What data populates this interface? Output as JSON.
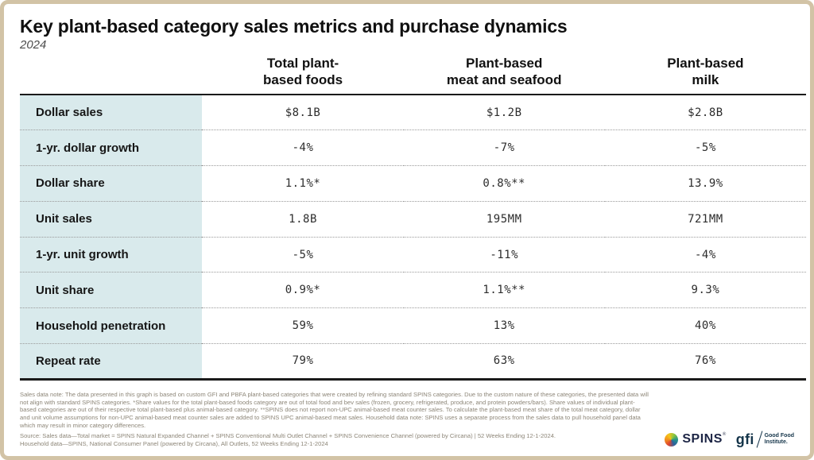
{
  "chart_data": {
    "type": "table",
    "title": "Key plant-based category sales metrics and purchase dynamics",
    "subtitle": "2024",
    "columns": [
      {
        "line1": "Total plant-",
        "line2": "based foods"
      },
      {
        "line1": "Plant-based",
        "line2": "meat and seafood"
      },
      {
        "line1": "Plant-based",
        "line2": "milk"
      }
    ],
    "rows": [
      {
        "label": "Dollar sales",
        "values": [
          "$8.1B",
          "$1.2B",
          "$2.8B"
        ]
      },
      {
        "label": "1-yr. dollar growth",
        "values": [
          "-4%",
          "-7%",
          "-5%"
        ]
      },
      {
        "label": "Dollar share",
        "values": [
          "1.1%*",
          "0.8%**",
          "13.9%"
        ]
      },
      {
        "label": "Unit sales",
        "values": [
          "1.8B",
          "195MM",
          "721MM"
        ]
      },
      {
        "label": "1-yr. unit growth",
        "values": [
          "-5%",
          "-11%",
          "-4%"
        ]
      },
      {
        "label": "Unit share",
        "values": [
          "0.9%*",
          "1.1%**",
          "9.3%"
        ]
      },
      {
        "label": "Household penetration",
        "values": [
          "59%",
          "13%",
          "40%"
        ]
      },
      {
        "label": "Repeat rate",
        "values": [
          "79%",
          "63%",
          "76%"
        ]
      }
    ]
  },
  "footnotes": {
    "sales_note": "Sales data note: The data presented in this graph is based on custom GFI and PBFA plant-based categories that were created by refining standard SPINS categories. Due to the custom nature of these categories, the presented data will not align with standard SPINS categories. *Share values for the total plant-based foods category are out of total food and bev sales (frozen, grocery, refrigerated, produce, and protein powders/bars). Share values of individual plant-based categories are out of their respective total plant-based plus animal-based category. **SPINS does not report non-UPC animal-based meat counter sales. To calculate the plant-based meat share of the total meat category, dollar and unit volume assumptions for non-UPC animal-based meat counter sales are added to SPINS UPC animal-based meat sales. Household data note: SPINS uses a separate process from the sales data to pull household panel data which may result in minor category differences.",
    "source_line1": "Source: Sales data—Total market = SPINS Natural Expanded Channel + SPINS Conventional Multi Outlet Channel + SPINS Convenience Channel (powered by Circana) | 52 Weeks Ending 12-1-2024.",
    "source_line2": "Household data—SPINS, National Consumer Panel (powered by Circana), All Outlets, 52 Weeks Ending 12-1-2024"
  },
  "logos": {
    "spins_label": "SPINS",
    "spins_mark": "®",
    "gfi_label": "gfi",
    "gfi_sub1": "Good Food",
    "gfi_sub2": "Institute."
  },
  "colors": {
    "label_column_bg": "#d9eaec",
    "card_border": "#d2c3a6",
    "navy": "#1d2545",
    "footnote_gray": "#8d8678"
  }
}
